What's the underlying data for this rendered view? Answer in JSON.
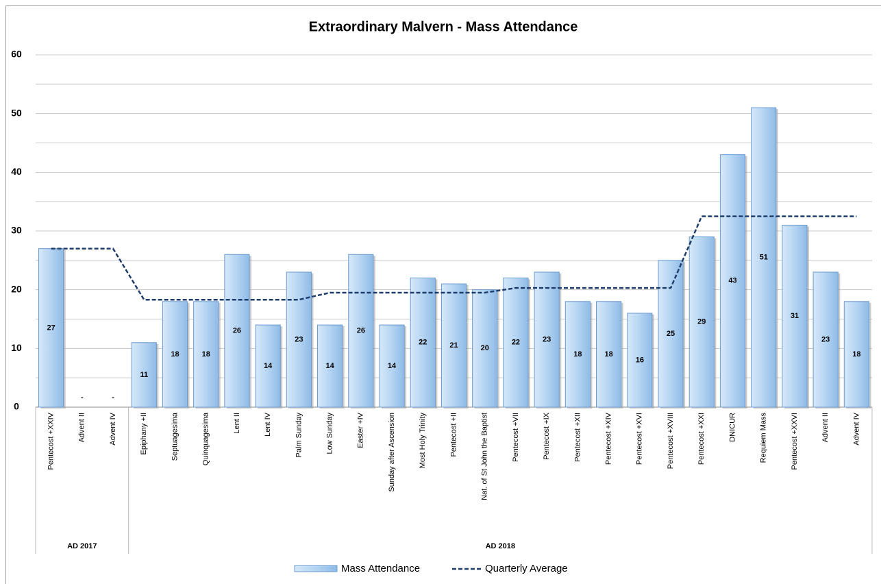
{
  "chart_data": {
    "type": "bar",
    "title": "Extraordinary Malvern - Mass Attendance",
    "categories": [
      "Pentecost +XXIV",
      "Advent II",
      "Advent IV",
      "Epiphany +II",
      "Septuagesima",
      "Quinquagesima",
      "Lent II",
      "Lent IV",
      "Palm Sunday",
      "Low Sunday",
      "Easter +IV",
      "Sunday after Ascension",
      "Most Holy Trinity",
      "Pentecost +II",
      "Nat. of St John the Baptist",
      "Pentecost +VII",
      "Pentecost +IX",
      "Pentecost +XII",
      "Pentecost +XIV",
      "Pentecost +XVI",
      "Pentecost +XVIII",
      "Pentecost +XXI",
      "DNICUR",
      "Requiem Mass",
      "Pentecost +XXVI",
      "Advent II",
      "Advent IV"
    ],
    "groups": [
      {
        "label": "AD 2017",
        "start": 0,
        "end": 2
      },
      {
        "label": "AD 2018",
        "start": 3,
        "end": 26
      }
    ],
    "series": [
      {
        "name": "Mass Attendance",
        "type": "bar",
        "color": "#b4d4f2",
        "edge_color": "#6b9bcf",
        "values": [
          27,
          0,
          0,
          11,
          18,
          18,
          26,
          14,
          23,
          14,
          26,
          14,
          22,
          21,
          20,
          22,
          23,
          18,
          18,
          16,
          25,
          29,
          43,
          51,
          31,
          23,
          18
        ],
        "value_labels": [
          "27",
          "-",
          "-",
          "11",
          "18",
          "18",
          "26",
          "14",
          "23",
          "14",
          "26",
          "14",
          "22",
          "21",
          "20",
          "22",
          "23",
          "18",
          "18",
          "16",
          "25",
          "29",
          "43",
          "51",
          "31",
          "23",
          "18"
        ]
      },
      {
        "name": "Quarterly Average",
        "type": "line",
        "color": "#1f3d6b",
        "dashed": true,
        "values": [
          27,
          27,
          27,
          18.3,
          18.3,
          18.3,
          18.3,
          18.3,
          18.3,
          19.5,
          19.5,
          19.5,
          19.5,
          19.5,
          19.5,
          20.3,
          20.3,
          20.3,
          20.3,
          20.3,
          20.3,
          32.5,
          32.5,
          32.5,
          32.5,
          32.5,
          32.5
        ]
      }
    ],
    "ylim": [
      0,
      60
    ],
    "yticks": [
      0,
      10,
      20,
      30,
      40,
      50,
      60
    ],
    "y_minor_gridlines": [
      5,
      15,
      25,
      35,
      45,
      55
    ],
    "grid": true,
    "legend": "bottom"
  }
}
